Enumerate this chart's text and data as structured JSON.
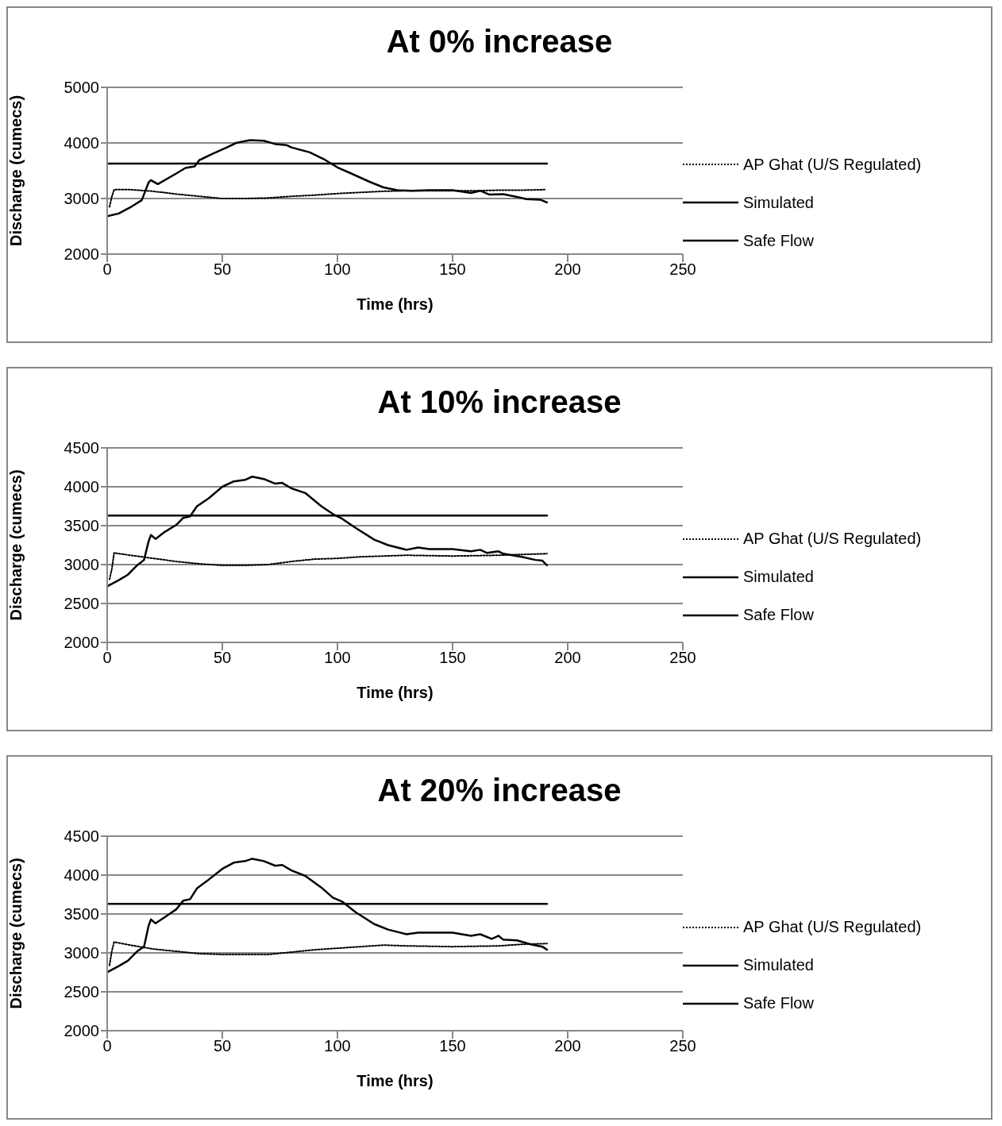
{
  "chart_data": [
    {
      "type": "line",
      "title": "At 0% increase",
      "xlabel": "Time (hrs)",
      "ylabel": "Discharge (cumecs)",
      "xlim": [
        0,
        250
      ],
      "xticks": [
        0,
        50,
        100,
        150,
        200,
        250
      ],
      "ylim": [
        2000,
        5000
      ],
      "yticks": [
        2000,
        3000,
        4000,
        5000
      ],
      "grid": "y",
      "legend": "right",
      "marker": "none",
      "series": [
        {
          "name": "AP Ghat (U/S Regulated)",
          "color": "#000000",
          "line_style": "dotted",
          "x": [
            1,
            2,
            3,
            10,
            20,
            30,
            40,
            50,
            60,
            70,
            80,
            90,
            100,
            110,
            120,
            130,
            140,
            150,
            160,
            170,
            180,
            190
          ],
          "values": [
            2850,
            3030,
            3160,
            3160,
            3130,
            3080,
            3040,
            3000,
            3000,
            3010,
            3040,
            3060,
            3090,
            3110,
            3130,
            3140,
            3140,
            3140,
            3140,
            3150,
            3150,
            3160
          ]
        },
        {
          "name": "Simulated",
          "color": "#000000",
          "line_style": "solid",
          "x": [
            0,
            5,
            10,
            15,
            18,
            19,
            22,
            30,
            34,
            38,
            40,
            46,
            52,
            56,
            62,
            68,
            73,
            78,
            80,
            88,
            94,
            100,
            106,
            114,
            120,
            126,
            132,
            140,
            150,
            158,
            162,
            166,
            172,
            178,
            182,
            188,
            191
          ],
          "values": [
            2680,
            2730,
            2840,
            2970,
            3290,
            3330,
            3260,
            3450,
            3550,
            3580,
            3690,
            3810,
            3920,
            4000,
            4050,
            4040,
            3980,
            3960,
            3920,
            3830,
            3710,
            3560,
            3450,
            3300,
            3200,
            3150,
            3140,
            3150,
            3150,
            3100,
            3140,
            3070,
            3080,
            3030,
            2990,
            2980,
            2930
          ]
        },
        {
          "name": "Safe Flow",
          "color": "#000000",
          "line_style": "solid",
          "x": [
            0,
            191
          ],
          "values": [
            3630,
            3630
          ]
        }
      ]
    },
    {
      "type": "line",
      "title": "At 10% increase",
      "xlabel": "Time (hrs)",
      "ylabel": "Discharge (cumecs)",
      "xlim": [
        0,
        250
      ],
      "xticks": [
        0,
        50,
        100,
        150,
        200,
        250
      ],
      "ylim": [
        2000,
        4500
      ],
      "yticks": [
        2000,
        2500,
        3000,
        3500,
        4000,
        4500
      ],
      "grid": "y",
      "legend": "right",
      "marker": "none",
      "series": [
        {
          "name": "AP Ghat (U/S Regulated)",
          "color": "#000000",
          "line_style": "dotted",
          "x": [
            1,
            2,
            3,
            10,
            20,
            30,
            40,
            50,
            60,
            70,
            80,
            90,
            100,
            110,
            120,
            130,
            150,
            170,
            180,
            191
          ],
          "values": [
            2810,
            2940,
            3150,
            3120,
            3080,
            3040,
            3010,
            2990,
            2990,
            3000,
            3040,
            3070,
            3080,
            3100,
            3110,
            3120,
            3110,
            3120,
            3130,
            3140
          ]
        },
        {
          "name": "Simulated",
          "color": "#000000",
          "line_style": "solid",
          "x": [
            0,
            5,
            9,
            13,
            16,
            18,
            19,
            21,
            25,
            30,
            33,
            36,
            39,
            44,
            50,
            55,
            60,
            63,
            68,
            73,
            76,
            80,
            86,
            93,
            98,
            102,
            108,
            116,
            122,
            130,
            135,
            140,
            150,
            158,
            162,
            165,
            170,
            172,
            180,
            186,
            189,
            191
          ],
          "values": [
            2720,
            2800,
            2870,
            2990,
            3060,
            3300,
            3380,
            3330,
            3420,
            3510,
            3600,
            3620,
            3750,
            3850,
            4000,
            4070,
            4090,
            4130,
            4100,
            4040,
            4050,
            3980,
            3920,
            3750,
            3650,
            3590,
            3470,
            3320,
            3250,
            3190,
            3220,
            3200,
            3200,
            3170,
            3190,
            3150,
            3170,
            3140,
            3100,
            3060,
            3050,
            2990
          ]
        },
        {
          "name": "Safe Flow",
          "color": "#000000",
          "line_style": "solid",
          "x": [
            0,
            191
          ],
          "values": [
            3630,
            3630
          ]
        }
      ]
    },
    {
      "type": "line",
      "title": "At 20% increase",
      "xlabel": "Time (hrs)",
      "ylabel": "Discharge (cumecs)",
      "xlim": [
        0,
        250
      ],
      "xticks": [
        0,
        50,
        100,
        150,
        200,
        250
      ],
      "ylim": [
        2000,
        4500
      ],
      "yticks": [
        2000,
        2500,
        3000,
        3500,
        4000,
        4500
      ],
      "grid": "y",
      "legend": "right",
      "marker": "none",
      "series": [
        {
          "name": "AP Ghat (U/S Regulated)",
          "color": "#000000",
          "line_style": "dotted",
          "x": [
            1,
            2,
            3,
            10,
            20,
            30,
            40,
            50,
            60,
            70,
            80,
            90,
            100,
            110,
            120,
            130,
            150,
            170,
            180,
            191
          ],
          "values": [
            2840,
            3020,
            3140,
            3100,
            3050,
            3020,
            2990,
            2980,
            2980,
            2980,
            3010,
            3040,
            3060,
            3080,
            3100,
            3090,
            3080,
            3090,
            3110,
            3120
          ]
        },
        {
          "name": "Simulated",
          "color": "#000000",
          "line_style": "solid",
          "x": [
            0,
            5,
            9,
            13,
            16,
            18,
            19,
            21,
            25,
            30,
            33,
            36,
            39,
            44,
            50,
            55,
            60,
            63,
            68,
            73,
            76,
            80,
            86,
            93,
            98,
            102,
            108,
            116,
            122,
            130,
            135,
            150,
            158,
            162,
            167,
            170,
            172,
            178,
            184,
            189,
            191
          ],
          "values": [
            2750,
            2830,
            2900,
            3020,
            3080,
            3350,
            3430,
            3380,
            3460,
            3560,
            3670,
            3690,
            3830,
            3940,
            4080,
            4160,
            4180,
            4210,
            4180,
            4120,
            4130,
            4060,
            3990,
            3840,
            3710,
            3660,
            3520,
            3370,
            3300,
            3240,
            3260,
            3260,
            3220,
            3240,
            3180,
            3220,
            3170,
            3160,
            3110,
            3080,
            3040
          ]
        },
        {
          "name": "Safe Flow",
          "color": "#000000",
          "line_style": "solid",
          "x": [
            0,
            191
          ],
          "values": [
            3630,
            3630
          ]
        }
      ]
    }
  ]
}
